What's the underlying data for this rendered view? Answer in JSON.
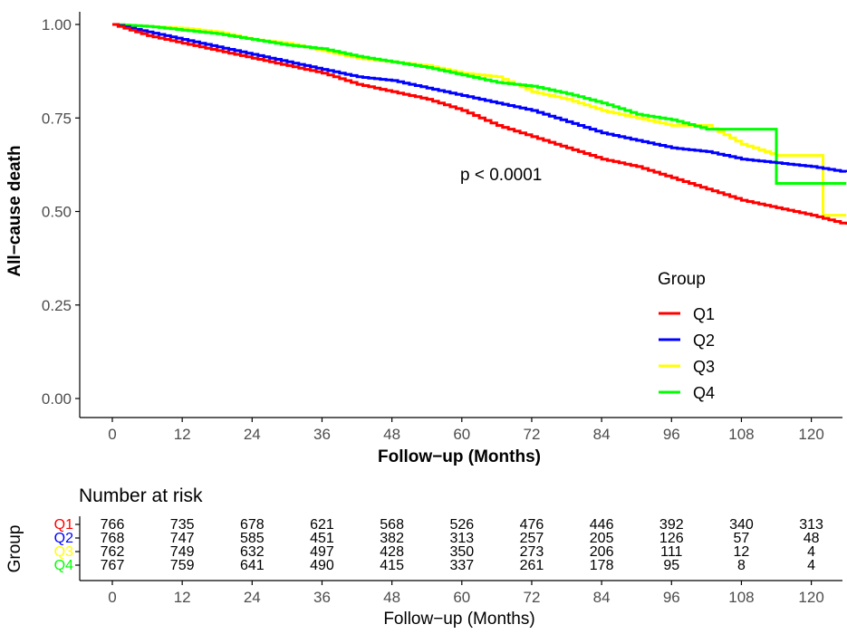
{
  "chart_data": {
    "type": "line",
    "title": "",
    "xlabel": "Follow−up (Months)",
    "ylabel": "All−cause death",
    "xlim": [
      0,
      126
    ],
    "ylim": [
      0,
      1
    ],
    "x_ticks": [
      "0",
      "12",
      "24",
      "36",
      "48",
      "60",
      "72",
      "84",
      "96",
      "108",
      "120"
    ],
    "y_ticks": [
      "0.00",
      "0.25",
      "0.50",
      "0.75",
      "1.00"
    ],
    "annotation": "p < 0.0001",
    "legend": {
      "title": "Group",
      "position": "right",
      "entries": [
        "Q1",
        "Q2",
        "Q3",
        "Q4"
      ]
    },
    "series": [
      {
        "name": "Q1",
        "color": "#ff0000",
        "x": [
          0,
          6,
          12,
          18,
          24,
          30,
          36,
          42,
          48,
          54,
          60,
          66,
          72,
          78,
          84,
          90,
          96,
          102,
          108,
          114,
          120,
          126
        ],
        "y": [
          1.0,
          0.97,
          0.95,
          0.93,
          0.91,
          0.89,
          0.87,
          0.84,
          0.82,
          0.8,
          0.77,
          0.73,
          0.7,
          0.67,
          0.64,
          0.62,
          0.59,
          0.56,
          0.53,
          0.51,
          0.49,
          0.465
        ]
      },
      {
        "name": "Q2",
        "color": "#0000ff",
        "x": [
          0,
          6,
          12,
          18,
          24,
          30,
          36,
          42,
          48,
          54,
          60,
          66,
          72,
          78,
          84,
          90,
          96,
          102,
          108,
          114,
          120,
          126
        ],
        "y": [
          1.0,
          0.98,
          0.96,
          0.94,
          0.92,
          0.9,
          0.88,
          0.86,
          0.85,
          0.83,
          0.81,
          0.79,
          0.77,
          0.74,
          0.71,
          0.69,
          0.67,
          0.66,
          0.64,
          0.63,
          0.62,
          0.605
        ]
      },
      {
        "name": "Q3",
        "color": "#ffff00",
        "x": [
          0,
          6,
          12,
          18,
          24,
          30,
          36,
          42,
          48,
          54,
          60,
          66,
          72,
          78,
          84,
          90,
          96,
          102,
          108,
          114,
          120,
          122,
          126
        ],
        "y": [
          1.0,
          0.995,
          0.99,
          0.98,
          0.96,
          0.95,
          0.93,
          0.91,
          0.9,
          0.89,
          0.87,
          0.86,
          0.82,
          0.8,
          0.77,
          0.75,
          0.73,
          0.73,
          0.68,
          0.65,
          0.65,
          0.49,
          0.49
        ]
      },
      {
        "name": "Q4",
        "color": "#00ff00",
        "x": [
          0,
          6,
          12,
          18,
          24,
          30,
          36,
          42,
          48,
          54,
          60,
          66,
          72,
          78,
          84,
          90,
          96,
          102,
          108,
          114,
          120,
          126
        ],
        "y": [
          1.0,
          0.995,
          0.985,
          0.975,
          0.96,
          0.945,
          0.935,
          0.915,
          0.9,
          0.885,
          0.865,
          0.845,
          0.835,
          0.815,
          0.79,
          0.76,
          0.745,
          0.72,
          0.72,
          0.575,
          0.575,
          0.575
        ]
      }
    ]
  },
  "risk_table": {
    "title": "Number at risk",
    "ylabel": "Group",
    "xlabel": "Follow−up (Months)",
    "time_points": [
      "0",
      "12",
      "24",
      "36",
      "48",
      "60",
      "72",
      "84",
      "96",
      "108",
      "120"
    ],
    "rows": [
      {
        "group": "Q1",
        "color": "#ff0000",
        "values": [
          "766",
          "735",
          "678",
          "621",
          "568",
          "526",
          "476",
          "446",
          "392",
          "340",
          "313"
        ]
      },
      {
        "group": "Q2",
        "color": "#0000ff",
        "values": [
          "768",
          "747",
          "585",
          "451",
          "382",
          "313",
          "257",
          "205",
          "126",
          "57",
          "48"
        ]
      },
      {
        "group": "Q3",
        "color": "#ffff00",
        "values": [
          "762",
          "749",
          "632",
          "497",
          "428",
          "350",
          "273",
          "206",
          "111",
          "12",
          "4"
        ]
      },
      {
        "group": "Q4",
        "color": "#00ff00",
        "values": [
          "767",
          "759",
          "641",
          "490",
          "415",
          "337",
          "261",
          "178",
          "95",
          "8",
          "4"
        ]
      }
    ]
  }
}
